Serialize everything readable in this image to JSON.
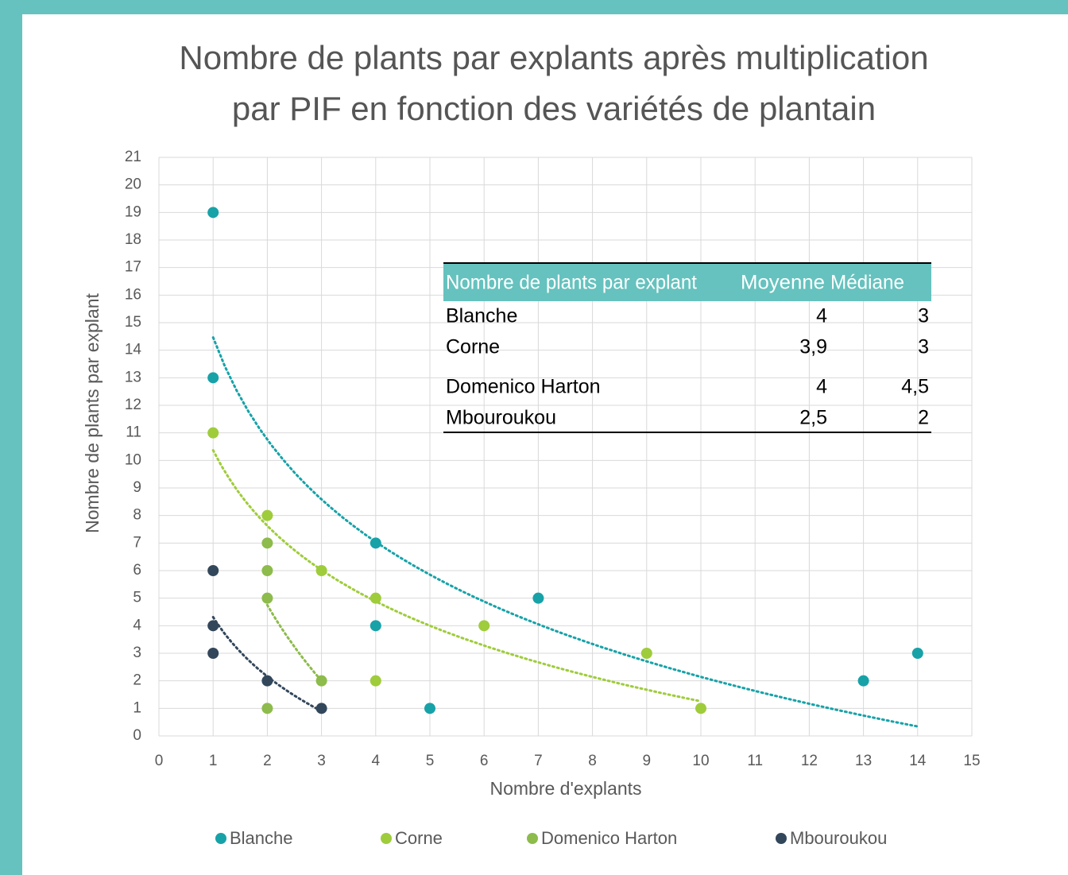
{
  "chart_data": {
    "type": "scatter",
    "title": [
      "Nombre de plants par explants après multiplication",
      "par PIF en fonction des variétés de plantain"
    ],
    "x_label": "Nombre d'explants",
    "y_label": "Nombre de plants par explant",
    "xlim": [
      0,
      15
    ],
    "xticks": [
      0,
      1,
      2,
      3,
      4,
      5,
      6,
      7,
      8,
      9,
      10,
      11,
      12,
      13,
      14,
      15
    ],
    "ylim": [
      0,
      21
    ],
    "yticks": [
      0,
      1,
      2,
      3,
      4,
      5,
      6,
      7,
      8,
      9,
      10,
      11,
      12,
      13,
      14,
      15,
      16,
      17,
      18,
      19,
      20,
      21
    ],
    "grid": true,
    "legend": "bottom",
    "series": [
      {
        "name": "Blanche",
        "color": "#17a2a8",
        "trendline": "logarithmic",
        "x": [
          1,
          1,
          4,
          4,
          5,
          7,
          13,
          14
        ],
        "values": [
          19,
          13,
          7,
          4,
          1,
          5,
          2,
          3
        ]
      },
      {
        "name": "Corne",
        "color": "#9fcc3b",
        "trendline": "logarithmic",
        "x": [
          1,
          2,
          3,
          4,
          4,
          6,
          9,
          10
        ],
        "values": [
          11,
          8,
          6,
          5,
          2,
          4,
          3,
          1
        ]
      },
      {
        "name": "Domenico Harton",
        "color": "#8dbb4c",
        "trendline": "logarithmic",
        "x": [
          2,
          2,
          2,
          2,
          3
        ],
        "values": [
          7,
          6,
          5,
          1,
          2
        ]
      },
      {
        "name": "Mbouroukou",
        "color": "#33475b",
        "trendline": "logarithmic",
        "x": [
          1,
          1,
          1,
          2,
          3
        ],
        "values": [
          6,
          4,
          3,
          2,
          1
        ]
      }
    ],
    "table": {
      "columns": [
        "Nombre de plants par explant",
        "Moyenne",
        "Médiane"
      ],
      "rows": [
        [
          "Blanche",
          "4",
          "3"
        ],
        [
          "Corne",
          "3,9",
          "3"
        ],
        [
          "Domenico Harton",
          "4",
          "4,5"
        ],
        [
          "Mbouroukou",
          "2,5",
          "2"
        ]
      ]
    }
  }
}
